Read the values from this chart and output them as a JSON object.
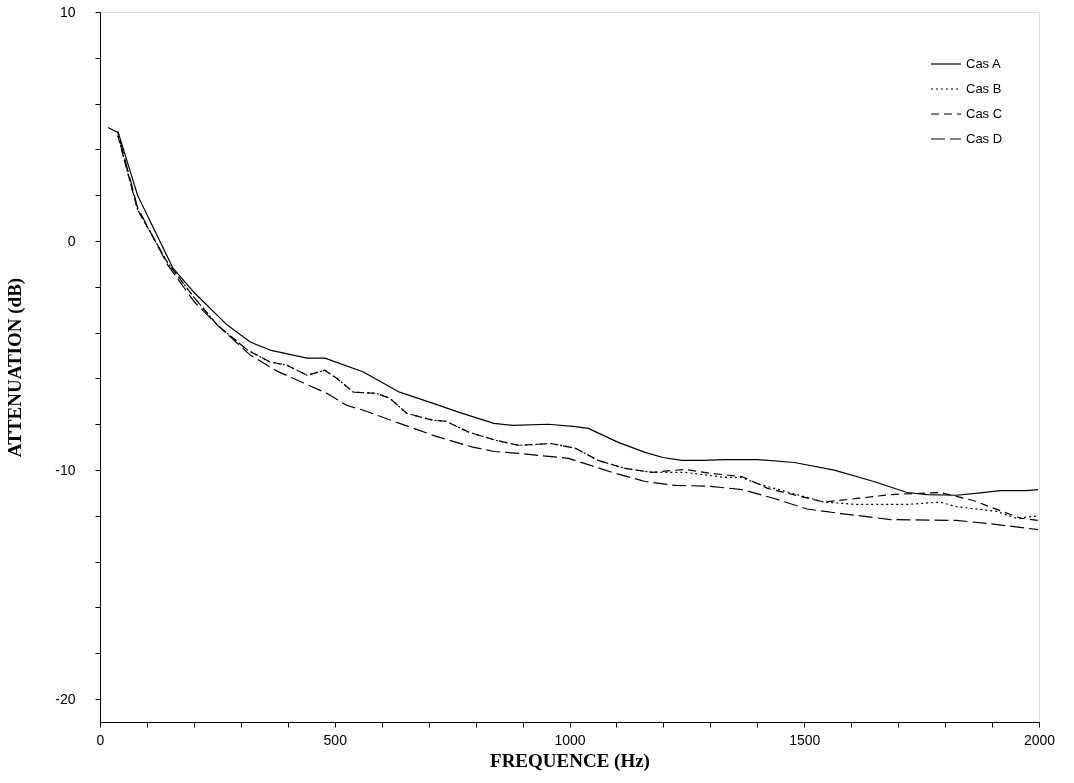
{
  "chart_data": {
    "type": "line",
    "xlabel": "FREQUENCE (Hz)",
    "ylabel": "ATTENUATION (dB)",
    "xlim": [
      0,
      2000
    ],
    "ylim": [
      -21,
      10
    ],
    "xticks": [
      0,
      {
        "value": 100,
        "label": null
      },
      {
        "value": 200,
        "label": null
      },
      {
        "value": 300,
        "label": null
      },
      {
        "value": 400,
        "label": null
      },
      500,
      {
        "value": 600,
        "label": null
      },
      {
        "value": 700,
        "label": null
      },
      {
        "value": 800,
        "label": null
      },
      {
        "value": 900,
        "label": null
      },
      1000,
      {
        "value": 1100,
        "label": null
      },
      {
        "value": 1200,
        "label": null
      },
      {
        "value": 1300,
        "label": null
      },
      {
        "value": 1400,
        "label": null
      },
      1500,
      {
        "value": 1600,
        "label": null
      },
      {
        "value": 1700,
        "label": null
      },
      {
        "value": 1800,
        "label": null
      },
      {
        "value": 1900,
        "label": null
      },
      2000
    ],
    "yticks": [
      -20,
      {
        "value": -18,
        "label": null
      },
      {
        "value": -16,
        "label": null
      },
      {
        "value": -14,
        "label": null
      },
      {
        "value": -12,
        "label": null
      },
      -10,
      {
        "value": -8,
        "label": null
      },
      {
        "value": -6,
        "label": null
      },
      {
        "value": -4,
        "label": null
      },
      {
        "value": -2,
        "label": null
      },
      0,
      {
        "value": 2,
        "label": null
      },
      {
        "value": 4,
        "label": null
      },
      {
        "value": 6,
        "label": null
      },
      {
        "value": 8,
        "label": null
      },
      10
    ],
    "grid": false,
    "legend": "top right",
    "marker": "none",
    "series": [
      {
        "name": "Cas A",
        "color": "#000000",
        "line_style": "solid",
        "x": [
          38,
          59,
          80,
          155,
          201,
          271,
          320,
          362,
          441,
          479,
          561,
          638,
          716,
          765,
          839,
          879,
          955,
          1013,
          1040,
          1104,
          1161,
          1199,
          1239,
          1282,
          1331,
          1401,
          1479,
          1564,
          1648,
          1719,
          1761,
          1824,
          1875,
          1917,
          1973,
          1998
        ],
        "values": [
          4.8,
          3.4,
          2.0,
          -1.17,
          -2.26,
          -3.67,
          -4.41,
          -4.76,
          -5.11,
          -5.11,
          -5.72,
          -6.6,
          -7.13,
          -7.48,
          -7.96,
          -8.05,
          -8.0,
          -8.1,
          -8.18,
          -8.79,
          -9.23,
          -9.45,
          -9.58,
          -9.58,
          -9.54,
          -9.54,
          -9.67,
          -10.0,
          -10.5,
          -10.98,
          -11.07,
          -11.1,
          -11.0,
          -10.9,
          -10.9,
          -10.85
        ]
      },
      {
        "name": "Cas B",
        "color": "#000000",
        "line_style": "dotted",
        "x": [
          38,
          80,
          144,
          201,
          250,
          314,
          362,
          398,
          441,
          479,
          504,
          540,
          589,
          617,
          653,
          710,
          737,
          786,
          843,
          892,
          960,
          1013,
          1061,
          1119,
          1176,
          1246,
          1331,
          1367,
          1401,
          1472,
          1542,
          1612,
          1719,
          1790,
          1824,
          1909,
          1951,
          1998
        ],
        "values": [
          4.6,
          1.37,
          -0.95,
          -2.48,
          -3.67,
          -4.76,
          -5.28,
          -5.42,
          -5.86,
          -5.64,
          -5.99,
          -6.6,
          -6.65,
          -6.86,
          -7.52,
          -7.83,
          -7.87,
          -8.35,
          -8.7,
          -8.92,
          -8.84,
          -9.05,
          -9.58,
          -9.93,
          -10.1,
          -10.1,
          -10.32,
          -10.32,
          -10.6,
          -11.0,
          -11.4,
          -11.5,
          -11.5,
          -11.4,
          -11.6,
          -11.8,
          -12.1,
          -12.0
        ]
      },
      {
        "name": "Cas C",
        "color": "#000000",
        "line_style": "dashed",
        "x": [
          38,
          80,
          144,
          201,
          250,
          314,
          362,
          398,
          441,
          479,
          504,
          540,
          589,
          617,
          653,
          710,
          737,
          786,
          843,
          892,
          960,
          1013,
          1061,
          1119,
          1176,
          1246,
          1303,
          1367,
          1422,
          1542,
          1612,
          1684,
          1790,
          1860,
          1917,
          1960,
          1998
        ],
        "values": [
          4.6,
          1.37,
          -0.95,
          -2.48,
          -3.67,
          -4.76,
          -5.28,
          -5.42,
          -5.86,
          -5.64,
          -5.99,
          -6.6,
          -6.65,
          -6.86,
          -7.52,
          -7.83,
          -7.87,
          -8.35,
          -8.7,
          -8.92,
          -8.84,
          -9.05,
          -9.58,
          -9.93,
          -10.1,
          -9.97,
          -10.15,
          -10.28,
          -10.8,
          -11.4,
          -11.24,
          -11.07,
          -10.98,
          -11.33,
          -11.77,
          -12.1,
          -12.2
        ]
      },
      {
        "name": "Cas D",
        "color": "#000000",
        "line_style": "longdashed",
        "x": [
          17,
          38,
          80,
          144,
          201,
          250,
          320,
          377,
          434,
          483,
          525,
          561,
          638,
          716,
          794,
          839,
          892,
          998,
          1091,
          1161,
          1225,
          1294,
          1367,
          1436,
          1506,
          1578,
          1684,
          1824,
          1896,
          1998
        ],
        "values": [
          4.96,
          4.74,
          1.46,
          -1.04,
          -2.66,
          -3.67,
          -4.98,
          -5.68,
          -6.2,
          -6.65,
          -7.17,
          -7.39,
          -7.96,
          -8.53,
          -9.0,
          -9.19,
          -9.27,
          -9.49,
          -10.1,
          -10.5,
          -10.67,
          -10.7,
          -10.85,
          -11.24,
          -11.7,
          -11.9,
          -12.16,
          -12.2,
          -12.34,
          -12.6
        ]
      }
    ]
  }
}
